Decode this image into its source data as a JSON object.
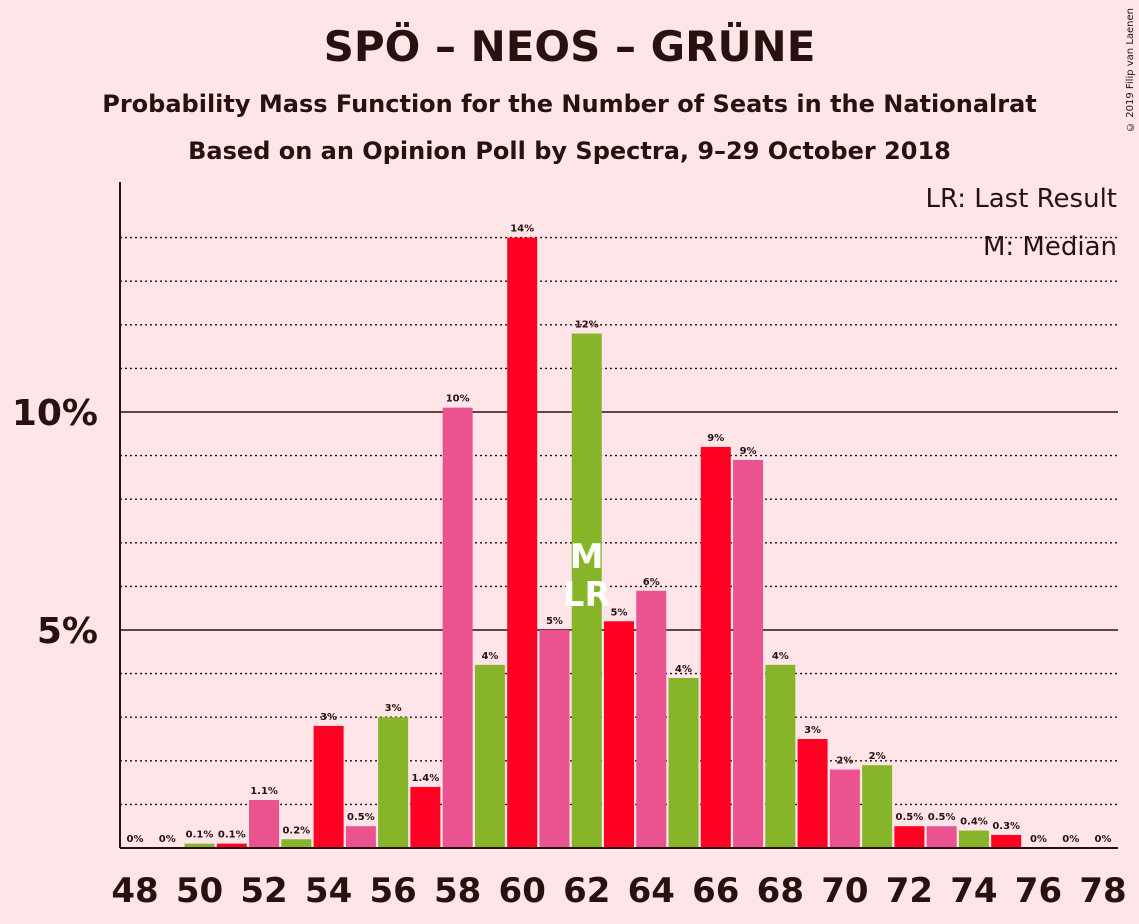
{
  "title": "SPÖ – NEOS – GRÜNE",
  "subtitle1": "Probability Mass Function for the Number of Seats in the Nationalrat",
  "subtitle2": "Based on an Opinion Poll by Spectra, 9–29 October 2018",
  "legend_lr": "LR: Last Result",
  "legend_m": "M: Median",
  "copyright": "© 2019 Filip van Laenen",
  "colors": {
    "red": "#ff0023",
    "pink": "#ea5390",
    "green": "#87b52a",
    "background": "#ffe5e8"
  },
  "chart_data": {
    "type": "bar",
    "x": [
      48,
      49,
      50,
      51,
      52,
      53,
      54,
      55,
      56,
      57,
      58,
      59,
      60,
      61,
      62,
      63,
      64,
      65,
      66,
      67,
      68,
      69,
      70,
      71,
      72,
      73,
      74,
      75,
      76,
      77,
      78
    ],
    "values": [
      0,
      0,
      0.1,
      0.1,
      1.1,
      0.2,
      2.8,
      0.5,
      3.0,
      1.4,
      10.1,
      4.2,
      14.0,
      5.0,
      11.8,
      5.2,
      5.9,
      3.9,
      9.2,
      8.9,
      4.2,
      2.5,
      1.8,
      1.9,
      0.5,
      0.5,
      0.4,
      0.3,
      0,
      0,
      0
    ],
    "labels": [
      "0%",
      "0%",
      "0.1%",
      "0.1%",
      "1.1%",
      "0.2%",
      "3%",
      "0.5%",
      "3%",
      "1.4%",
      "10%",
      "4%",
      "14%",
      "5%",
      "12%",
      "5%",
      "6%",
      "4%",
      "9%",
      "9%",
      "4%",
      "3%",
      "2%",
      "2%",
      "0.5%",
      "0.5%",
      "0.4%",
      "0.3%",
      "0%",
      "0%",
      "0%"
    ],
    "bar_colors": [
      "red",
      "pink",
      "green",
      "red",
      "pink",
      "green",
      "red",
      "pink",
      "green",
      "red",
      "pink",
      "green",
      "red",
      "pink",
      "green",
      "red",
      "pink",
      "green",
      "red",
      "pink",
      "green",
      "red",
      "pink",
      "green",
      "red",
      "pink",
      "green",
      "red",
      "pink",
      "green",
      "red"
    ],
    "xticks": [
      "48",
      "50",
      "52",
      "54",
      "56",
      "58",
      "60",
      "62",
      "64",
      "66",
      "68",
      "70",
      "72",
      "74",
      "76",
      "78"
    ],
    "yticks": [
      "5%",
      "10%"
    ],
    "ylim": [
      0,
      15
    ],
    "median_seat": 62,
    "median_marker": "M",
    "last_result_seat": 62,
    "last_result_marker": "LR",
    "grid": true
  }
}
